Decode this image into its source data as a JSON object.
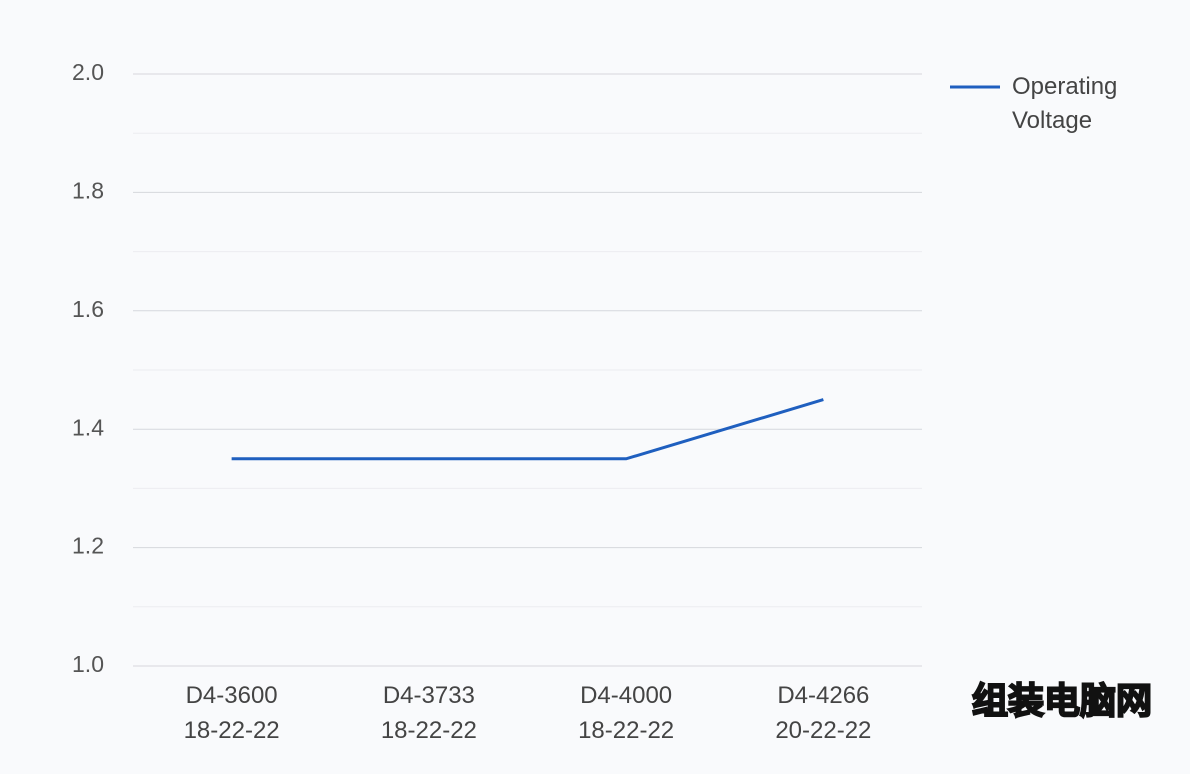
{
  "chart_data": {
    "type": "line",
    "categories": [
      "D4-3600\n18-22-22",
      "D4-3733\n18-22-22",
      "D4-4000\n18-22-22",
      "D4-4266\n20-22-22"
    ],
    "series": [
      {
        "name": "Operating Voltage",
        "color": "#1f5fbf",
        "values": [
          1.35,
          1.35,
          1.35,
          1.45
        ]
      }
    ],
    "ylim": [
      1.0,
      2.0
    ],
    "yticks": [
      {
        "value": 1,
        "label": "1.0"
      },
      1.2,
      1.4,
      1.6,
      1.8,
      {
        "value": 2,
        "label": "2.0"
      }
    ],
    "minor_yticks": [
      1.1,
      1.3,
      1.5,
      1.7,
      1.9
    ],
    "grid": true,
    "legend": "top-right"
  },
  "watermark": "组装电脑网"
}
